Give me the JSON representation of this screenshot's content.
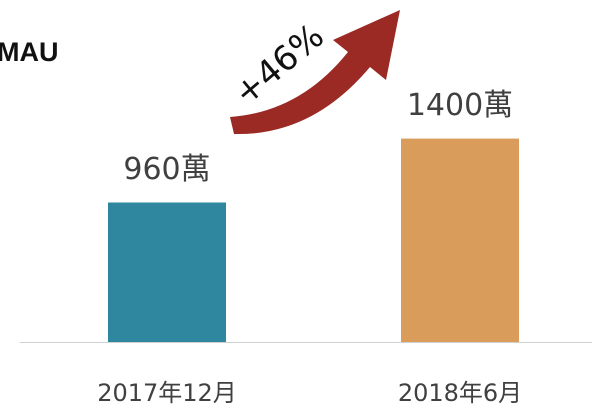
{
  "chart_data": {
    "type": "bar",
    "title": "MAU",
    "categories": [
      "2017年12月",
      "2018年6月"
    ],
    "values": [
      960,
      1400
    ],
    "value_labels": [
      "960萬",
      "1400萬"
    ],
    "colors": [
      "#2e879f",
      "#d99c5b"
    ],
    "annotation": "+46%"
  }
}
